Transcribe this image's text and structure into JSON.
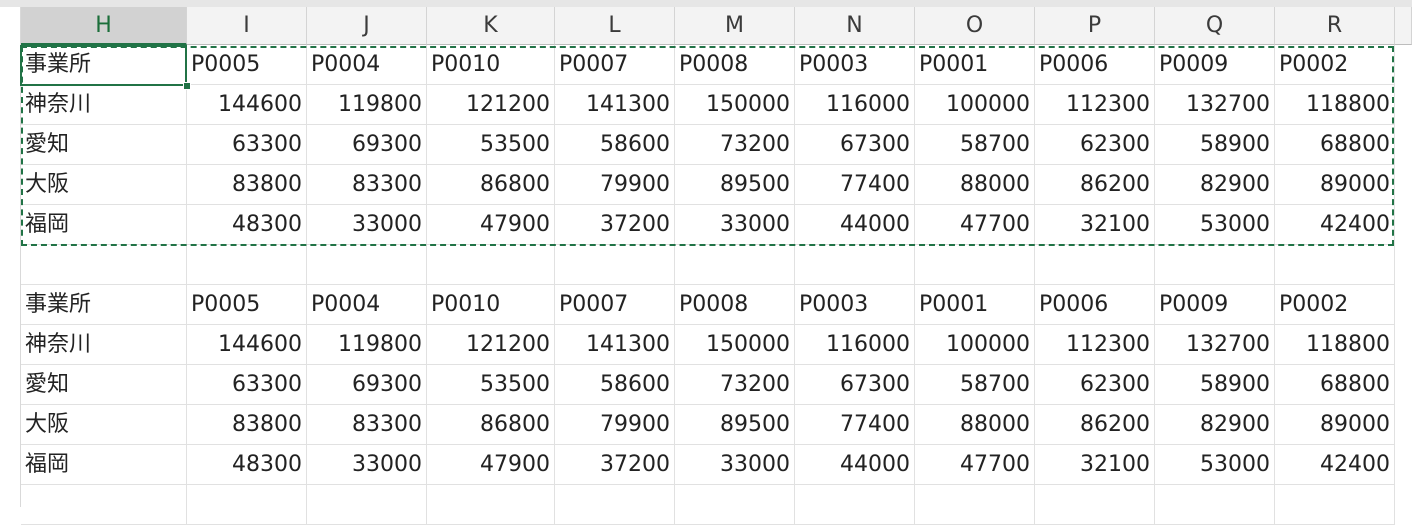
{
  "columns": [
    "H",
    "I",
    "J",
    "K",
    "L",
    "M",
    "N",
    "O",
    "P",
    "Q",
    "R"
  ],
  "active_column": "H",
  "table1": {
    "header": [
      "事業所",
      "P0005",
      "P0004",
      "P0010",
      "P0007",
      "P0008",
      "P0003",
      "P0001",
      "P0006",
      "P0009",
      "P0002"
    ],
    "rows": [
      [
        "神奈川",
        "144600",
        "119800",
        "121200",
        "141300",
        "150000",
        "116000",
        "100000",
        "112300",
        "132700",
        "118800"
      ],
      [
        "愛知",
        "63300",
        "69300",
        "53500",
        "58600",
        "73200",
        "67300",
        "58700",
        "62300",
        "58900",
        "68800"
      ],
      [
        "大阪",
        "83800",
        "83300",
        "86800",
        "79900",
        "89500",
        "77400",
        "88000",
        "86200",
        "82900",
        "89000"
      ],
      [
        "福岡",
        "48300",
        "33000",
        "47900",
        "37200",
        "33000",
        "44000",
        "47700",
        "32100",
        "53000",
        "42400"
      ]
    ]
  },
  "table2": {
    "header": [
      "事業所",
      "P0005",
      "P0004",
      "P0010",
      "P0007",
      "P0008",
      "P0003",
      "P0001",
      "P0006",
      "P0009",
      "P0002"
    ],
    "rows": [
      [
        "神奈川",
        "144600",
        "119800",
        "121200",
        "141300",
        "150000",
        "116000",
        "100000",
        "112300",
        "132700",
        "118800"
      ],
      [
        "愛知",
        "63300",
        "69300",
        "53500",
        "58600",
        "73200",
        "67300",
        "58700",
        "62300",
        "58900",
        "68800"
      ],
      [
        "大阪",
        "83800",
        "83300",
        "86800",
        "79900",
        "89500",
        "77400",
        "88000",
        "86200",
        "82900",
        "89000"
      ],
      [
        "福岡",
        "48300",
        "33000",
        "47900",
        "37200",
        "33000",
        "44000",
        "47700",
        "32100",
        "53000",
        "42400"
      ]
    ]
  },
  "colors": {
    "accent": "#217346",
    "grid": "#e1e1e1",
    "header_bg": "#f3f3f3"
  }
}
